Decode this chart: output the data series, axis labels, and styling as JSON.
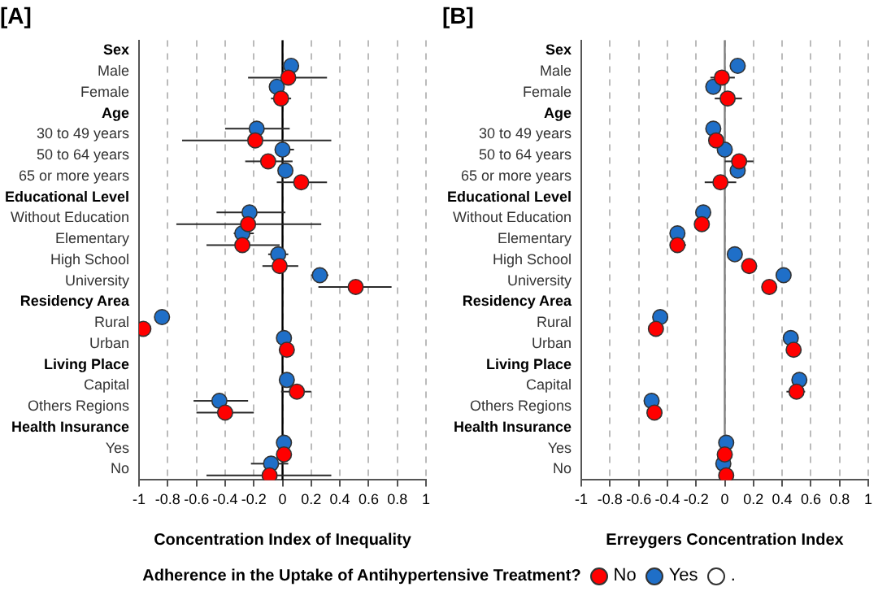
{
  "chart_data": [
    {
      "type": "scatter",
      "orientation": "horizontal",
      "title": "[A]",
      "xlabel": "Concentration Index of Inequality",
      "legend_title": "Adherence in the Uptake of Antihypertensive Treatment?",
      "legend": "bottom",
      "marker": "circle",
      "grid": "x",
      "categories": [
        "Sex",
        "Male",
        "Female",
        "Age",
        "30 to 49 years",
        "50 to 64 years",
        "65 or more years",
        "Educational Level",
        "Without Education",
        "Elementary",
        "High School",
        "University",
        "Residency Area",
        "Rural",
        "Urban",
        "Living Place",
        "Capital",
        "Others Regions",
        "Health Insurance",
        "Yes",
        "No"
      ],
      "xlim": [
        -1,
        1
      ],
      "xticks": [
        -1,
        -0.8,
        -0.6,
        -0.4,
        -0.2,
        0,
        0.2,
        0.4,
        0.6,
        0.8,
        1
      ],
      "ref_lines": [
        {
          "axis": "x",
          "value": 0,
          "color": "#000000"
        }
      ],
      "series": [
        {
          "name": "No",
          "color": "#ff0000",
          "values": [
            null,
            0.04,
            -0.01,
            null,
            -0.19,
            -0.1,
            0.13,
            null,
            -0.24,
            -0.28,
            -0.02,
            0.51,
            null,
            -0.97,
            0.03,
            null,
            0.1,
            -0.4,
            null,
            0.01,
            -0.09
          ],
          "errors": [
            null,
            [
              -0.24,
              0.31
            ],
            [
              -0.08,
              0.06
            ],
            null,
            [
              -0.7,
              0.34
            ],
            [
              -0.26,
              0.07
            ],
            [
              -0.04,
              0.31
            ],
            null,
            [
              -0.74,
              0.27
            ],
            [
              -0.53,
              -0.02
            ],
            [
              -0.14,
              0.11
            ],
            [
              0.25,
              0.76
            ],
            null,
            null,
            null,
            null,
            [
              -0.01,
              0.2
            ],
            [
              -0.6,
              -0.2
            ],
            null,
            null,
            [
              -0.53,
              0.34
            ]
          ]
        },
        {
          "name": "Yes",
          "color": "#1f6fc8",
          "values": [
            null,
            0.06,
            -0.04,
            null,
            -0.18,
            0.0,
            0.02,
            null,
            -0.23,
            -0.28,
            -0.03,
            0.26,
            null,
            -0.84,
            0.01,
            null,
            0.03,
            -0.44,
            null,
            0.01,
            -0.08
          ],
          "errors": [
            null,
            [
              0.0,
              0.11
            ],
            null,
            null,
            [
              -0.4,
              0.05
            ],
            [
              -0.04,
              0.08
            ],
            null,
            null,
            [
              -0.46,
              0.02
            ],
            [
              -0.34,
              -0.2
            ],
            [
              -0.1,
              0.04
            ],
            [
              0.2,
              0.32
            ],
            null,
            null,
            null,
            null,
            null,
            [
              -0.62,
              -0.24
            ],
            null,
            null,
            [
              -0.22,
              0.04
            ]
          ]
        },
        {
          "name": ".",
          "color": "#ffffff",
          "values": [
            null,
            null,
            null,
            null,
            null,
            null,
            null,
            null,
            null,
            null,
            null,
            null,
            null,
            null,
            null,
            null,
            null,
            null,
            null,
            null,
            null
          ]
        }
      ]
    },
    {
      "type": "scatter",
      "orientation": "horizontal",
      "title": "[B]",
      "xlabel": "Erreygers Concentration Index",
      "marker": "circle",
      "grid": "x",
      "categories": [
        "Sex",
        "Male",
        "Female",
        "Age",
        "30 to 49 years",
        "50 to 64 years",
        "65 or more years",
        "Educational Level",
        "Without Education",
        "Elementary",
        "High School",
        "University",
        "Residency Area",
        "Rural",
        "Urban",
        "Living Place",
        "Capital",
        "Others Regions",
        "Health Insurance",
        "Yes",
        "No"
      ],
      "xlim": [
        -1,
        1
      ],
      "xticks": [
        -1,
        -0.8,
        -0.6,
        -0.4,
        -0.2,
        0,
        0.2,
        0.4,
        0.6,
        0.8,
        1
      ],
      "ref_lines": [
        {
          "axis": "x",
          "value": 0,
          "color": "#808080"
        }
      ],
      "series": [
        {
          "color": "#ff0000",
          "values": [
            null,
            -0.02,
            0.02,
            null,
            -0.06,
            0.1,
            -0.03,
            null,
            -0.16,
            -0.33,
            0.17,
            0.31,
            null,
            -0.48,
            0.48,
            null,
            0.5,
            -0.49,
            null,
            0.0,
            0.01
          ],
          "errors": [
            null,
            [
              -0.1,
              0.07
            ],
            [
              -0.07,
              0.12
            ],
            null,
            [
              -0.11,
              -0.02
            ],
            [
              0.0,
              0.2
            ],
            [
              -0.14,
              0.08
            ],
            null,
            null,
            [
              -0.38,
              -0.27
            ],
            [
              0.12,
              0.22
            ],
            null,
            null,
            null,
            null,
            null,
            [
              0.43,
              0.56
            ],
            [
              -0.54,
              -0.44
            ],
            null,
            [
              -0.04,
              0.04
            ],
            null
          ]
        },
        {
          "color": "#1f6fc8",
          "values": [
            null,
            0.09,
            -0.08,
            null,
            -0.08,
            0.0,
            0.09,
            null,
            -0.15,
            -0.33,
            0.07,
            0.41,
            null,
            -0.45,
            0.46,
            null,
            0.52,
            -0.51,
            null,
            0.01,
            -0.01
          ]
        }
      ]
    }
  ]
}
